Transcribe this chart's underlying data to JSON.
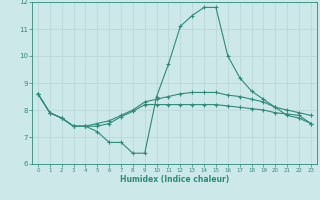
{
  "title": "",
  "xlabel": "Humidex (Indice chaleur)",
  "ylabel": "",
  "x": [
    0,
    1,
    2,
    3,
    4,
    5,
    6,
    7,
    8,
    9,
    10,
    11,
    12,
    13,
    14,
    15,
    16,
    17,
    18,
    19,
    20,
    21,
    22,
    23
  ],
  "line1": [
    8.6,
    7.9,
    7.7,
    7.4,
    7.4,
    7.2,
    6.8,
    6.8,
    6.4,
    6.4,
    8.5,
    9.7,
    11.1,
    11.5,
    11.8,
    11.8,
    10.0,
    9.2,
    8.7,
    8.4,
    8.1,
    7.8,
    7.7,
    7.5
  ],
  "line2": [
    8.6,
    7.9,
    7.7,
    7.4,
    7.4,
    7.5,
    7.6,
    7.8,
    8.0,
    8.3,
    8.4,
    8.5,
    8.6,
    8.65,
    8.65,
    8.65,
    8.55,
    8.5,
    8.4,
    8.3,
    8.1,
    8.0,
    7.9,
    7.8
  ],
  "line3": [
    8.6,
    7.9,
    7.7,
    7.4,
    7.4,
    7.4,
    7.5,
    7.75,
    7.95,
    8.2,
    8.2,
    8.2,
    8.2,
    8.2,
    8.2,
    8.2,
    8.15,
    8.1,
    8.05,
    8.0,
    7.9,
    7.85,
    7.8,
    7.5
  ],
  "line_color": "#2e8b7a",
  "bg_color": "#cce8e8",
  "grid_color": "#b8d4d4",
  "ylim": [
    6,
    12
  ],
  "xlim": [
    -0.5,
    23.5
  ],
  "yticks": [
    6,
    7,
    8,
    9,
    10,
    11,
    12
  ],
  "xticks": [
    0,
    1,
    2,
    3,
    4,
    5,
    6,
    7,
    8,
    9,
    10,
    11,
    12,
    13,
    14,
    15,
    16,
    17,
    18,
    19,
    20,
    21,
    22,
    23
  ]
}
